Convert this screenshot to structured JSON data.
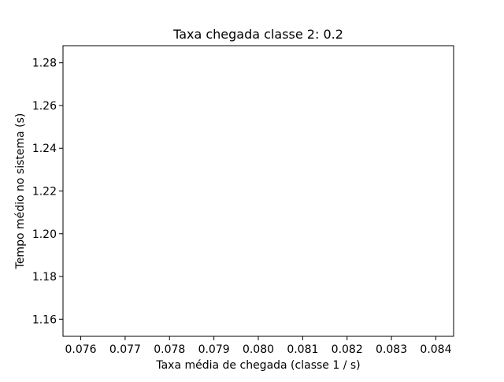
{
  "chart_data": {
    "type": "line",
    "title": "Taxa chegada classe 2: 0.2",
    "xlabel": "Taxa média de chegada (classe 1 / s)",
    "ylabel": "Tempo médio no sistema (s)",
    "xlim": [
      0.0756,
      0.0844
    ],
    "ylim": [
      1.152,
      1.288
    ],
    "xticks": [
      0.076,
      0.077,
      0.078,
      0.079,
      0.08,
      0.081,
      0.082,
      0.083,
      0.084
    ],
    "xtick_labels": [
      "0.076",
      "0.077",
      "0.078",
      "0.079",
      "0.080",
      "0.081",
      "0.082",
      "0.083",
      "0.084"
    ],
    "yticks": [
      1.16,
      1.18,
      1.2,
      1.22,
      1.24,
      1.26,
      1.28
    ],
    "ytick_labels": [
      "1.16",
      "1.18",
      "1.20",
      "1.22",
      "1.24",
      "1.26",
      "1.28"
    ],
    "series": [],
    "grid": false,
    "legend": "none"
  }
}
